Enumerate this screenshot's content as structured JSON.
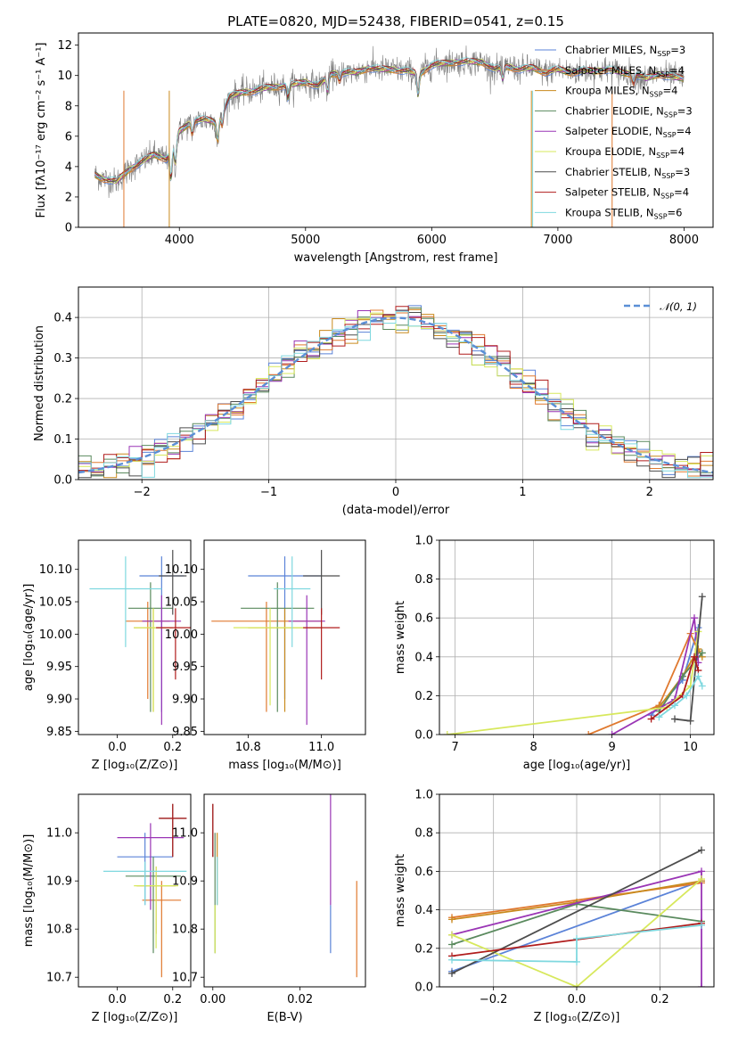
{
  "colors": [
    "#5b83d8",
    "#e0792f",
    "#c98a1d",
    "#5a8a5e",
    "#9a35b5",
    "#d7e85c",
    "#4d4d4d",
    "#b01c1c",
    "#7fd8df"
  ],
  "chart_data": [
    {
      "id": "spectrum",
      "type": "line",
      "title": "PLATE=0820, MJD=52438, FIBERID=0541, z=0.15",
      "xlabel": "wavelength [Angstrom, rest frame]",
      "ylabel": "Flux [fλ10⁻¹⁷ erg cm⁻² s⁻¹ A⁻¹]",
      "xlim": [
        3200,
        8230
      ],
      "ylim": [
        0,
        12.8
      ],
      "xticks": [
        4000,
        5000,
        6000,
        7000,
        8000
      ],
      "yticks": [
        0,
        2,
        4,
        6,
        8,
        10,
        12
      ],
      "grid": false,
      "legend_position": "upper right",
      "legend": [
        "Chabrier MILES, N_SSP=3",
        "Salpeter MILES, N_SSP=4",
        "Kroupa MILES, N_SSP=4",
        "Chabrier ELODIE, N_SSP=3",
        "Salpeter ELODIE, N_SSP=4",
        "Kroupa ELODIE, N_SSP=4",
        "Chabrier STELIB, N_SSP=3",
        "Salpeter STELIB, N_SSP=4",
        "Kroupa STELIB, N_SSP=6"
      ],
      "continuum": {
        "x": [
          3320,
          3400,
          3500,
          3600,
          3700,
          3800,
          3900,
          4000,
          4100,
          4200,
          4300,
          4400,
          4500,
          4600,
          4700,
          4800,
          4900,
          5000,
          5100,
          5200,
          5300,
          5400,
          5500,
          5600,
          5700,
          5800,
          5900,
          6000,
          6100,
          6200,
          6300,
          6400,
          6500,
          6600,
          6700,
          6800,
          6900,
          7000,
          7100,
          7200,
          7300,
          7400,
          7500,
          7600,
          7700,
          7800,
          7900,
          8000
        ],
        "y": [
          3.5,
          3.2,
          3.0,
          3.8,
          4.3,
          4.8,
          4.5,
          6.3,
          7.0,
          7.1,
          6.9,
          8.6,
          8.9,
          9.0,
          9.2,
          9.3,
          9.4,
          9.6,
          9.3,
          10.1,
          10.2,
          10.2,
          10.5,
          10.4,
          10.4,
          10.3,
          10.1,
          10.7,
          10.8,
          10.9,
          10.9,
          10.9,
          10.4,
          10.6,
          10.4,
          10.5,
          10.2,
          10.4,
          10.2,
          10.3,
          10.3,
          10.4,
          10.2,
          10.1,
          9.8,
          10.1,
          9.9,
          9.8
        ]
      }
    },
    {
      "id": "residuals",
      "type": "line",
      "xlabel": "(data-model)/error",
      "ylabel": "Normed distribution",
      "xlim": [
        -2.5,
        2.5
      ],
      "ylim": [
        0,
        0.475
      ],
      "xticks": [
        -2,
        -1,
        0,
        1,
        2
      ],
      "yticks": [
        0.0,
        0.1,
        0.2,
        0.3,
        0.4
      ],
      "grid": true,
      "legend_position": "upper right",
      "reference_curve_label": "𝒩(0, 1)",
      "bin_width": 0.1
    },
    {
      "id": "age-Z",
      "type": "scatter",
      "xlabel": "Z [log₁₀(Z/Z⊙)]",
      "ylabel": "age  [log₁₀(age/yr)]",
      "xlim": [
        -0.14,
        0.265
      ],
      "ylim": [
        9.845,
        10.145
      ],
      "xticks": [
        0.0,
        0.2
      ],
      "yticks": [
        9.85,
        9.9,
        9.95,
        10.0,
        10.05,
        10.1
      ],
      "points": [
        {
          "x": 0.16,
          "y": 10.09,
          "dx": 0.08,
          "dy_lo": 0.21,
          "dy_hi": 0.03
        },
        {
          "x": 0.11,
          "y": 10.02,
          "dx": 0.08,
          "dy_lo": 0.12,
          "dy_hi": 0.03
        },
        {
          "x": 0.13,
          "y": 10.01,
          "dx": 0.07,
          "dy_lo": 0.13,
          "dy_hi": 0.03
        },
        {
          "x": 0.12,
          "y": 10.04,
          "dx": 0.08,
          "dy_lo": 0.16,
          "dy_hi": 0.04
        },
        {
          "x": 0.16,
          "y": 10.02,
          "dx": 0.07,
          "dy_lo": 0.16,
          "dy_hi": 0.04
        },
        {
          "x": 0.13,
          "y": 10.01,
          "dx": 0.07,
          "dy_lo": 0.13,
          "dy_hi": 0.03
        },
        {
          "x": 0.2,
          "y": 10.09,
          "dx": 0.05,
          "dy_lo": 0.06,
          "dy_hi": 0.04
        },
        {
          "x": 0.21,
          "y": 10.01,
          "dx": 0.07,
          "dy_lo": 0.08,
          "dy_hi": 0.03
        },
        {
          "x": 0.03,
          "y": 10.07,
          "dx": 0.13,
          "dy_lo": 0.09,
          "dy_hi": 0.05
        }
      ]
    },
    {
      "id": "age-mass",
      "type": "scatter",
      "xlabel": "mass [log₁₀(M/M⊙)]",
      "xlim": [
        10.68,
        11.12
      ],
      "ylim": [
        9.845,
        10.145
      ],
      "xticks": [
        10.8,
        11.0
      ],
      "yticks": [
        9.85,
        9.9,
        9.95,
        10.0,
        10.05,
        10.1
      ],
      "points": [
        {
          "x": 10.9,
          "y": 10.09,
          "dx": 0.1,
          "dy_lo": 0.19,
          "dy_hi": 0.03
        },
        {
          "x": 10.85,
          "y": 10.02,
          "dx": 0.15,
          "dy_lo": 0.14,
          "dy_hi": 0.03
        },
        {
          "x": 10.9,
          "y": 10.01,
          "dx": 0.1,
          "dy_lo": 0.13,
          "dy_hi": 0.03
        },
        {
          "x": 10.88,
          "y": 10.04,
          "dx": 0.1,
          "dy_lo": 0.16,
          "dy_hi": 0.04
        },
        {
          "x": 10.96,
          "y": 10.02,
          "dx": 0.05,
          "dy_lo": 0.16,
          "dy_hi": 0.04
        },
        {
          "x": 10.86,
          "y": 10.01,
          "dx": 0.1,
          "dy_lo": 0.12,
          "dy_hi": 0.03
        },
        {
          "x": 11.0,
          "y": 10.09,
          "dx": 0.05,
          "dy_lo": 0.06,
          "dy_hi": 0.04
        },
        {
          "x": 11.0,
          "y": 10.01,
          "dx": 0.05,
          "dy_lo": 0.08,
          "dy_hi": 0.03
        },
        {
          "x": 10.92,
          "y": 10.07,
          "dx": 0.05,
          "dy_lo": 0.09,
          "dy_hi": 0.05
        }
      ]
    },
    {
      "id": "weight-age",
      "type": "line",
      "xlabel": "age  [log₁₀(age/yr)]",
      "ylabel": "mass weight",
      "xlim": [
        6.8,
        10.3
      ],
      "ylim": [
        0.0,
        1.0
      ],
      "xticks": [
        7,
        8,
        9,
        10
      ],
      "yticks": [
        0.0,
        0.2,
        0.4,
        0.6,
        0.8,
        1.0
      ],
      "grid": true,
      "series": [
        {
          "points": [
            [
              9.5,
              0.1
            ],
            [
              9.9,
              0.28
            ],
            [
              10.1,
              0.55
            ]
          ]
        },
        {
          "points": [
            [
              8.7,
              0.0
            ],
            [
              9.6,
              0.15
            ],
            [
              10.0,
              0.52
            ],
            [
              10.1,
              0.43
            ]
          ]
        },
        {
          "points": [
            [
              9.6,
              0.14
            ],
            [
              9.9,
              0.3
            ],
            [
              10.1,
              0.44
            ],
            [
              10.15,
              0.4
            ]
          ]
        },
        {
          "points": [
            [
              9.6,
              0.12
            ],
            [
              9.9,
              0.3
            ],
            [
              10.15,
              0.42
            ]
          ]
        },
        {
          "points": [
            [
              9.0,
              0.0
            ],
            [
              9.8,
              0.18
            ],
            [
              10.05,
              0.6
            ],
            [
              10.1,
              0.37
            ]
          ]
        },
        {
          "points": [
            [
              6.9,
              0.0
            ],
            [
              9.7,
              0.14
            ],
            [
              10.0,
              0.25
            ],
            [
              10.1,
              0.53
            ]
          ]
        },
        {
          "points": [
            [
              9.8,
              0.08
            ],
            [
              10.0,
              0.07
            ],
            [
              10.15,
              0.71
            ]
          ]
        },
        {
          "points": [
            [
              9.5,
              0.08
            ],
            [
              9.9,
              0.2
            ],
            [
              10.05,
              0.4
            ],
            [
              10.1,
              0.33
            ]
          ]
        },
        {
          "points": [
            [
              9.6,
              0.09
            ],
            [
              9.8,
              0.15
            ],
            [
              9.95,
              0.2
            ],
            [
              10.1,
              0.3
            ],
            [
              10.15,
              0.25
            ]
          ]
        }
      ]
    },
    {
      "id": "mass-Z",
      "type": "scatter",
      "xlabel": "Z [log₁₀(Z/Z⊙)]",
      "ylabel": "mass [log₁₀(M/M⊙)]",
      "xlim": [
        -0.14,
        0.265
      ],
      "ylim": [
        10.68,
        11.08
      ],
      "xticks": [
        0.0,
        0.2
      ],
      "yticks": [
        10.7,
        10.8,
        10.9,
        11.0
      ],
      "points": [
        {
          "x": 0.1,
          "y": 10.95,
          "dx": 0.1,
          "dy_lo": 0.1,
          "dy_hi": 0.05
        },
        {
          "x": 0.16,
          "y": 10.86,
          "dx": 0.07,
          "dy_lo": 0.16,
          "dy_hi": 0.04
        },
        {
          "x": 0.14,
          "y": 10.89,
          "dx": 0.07,
          "dy_lo": 0.1,
          "dy_hi": 0.04
        },
        {
          "x": 0.13,
          "y": 10.91,
          "dx": 0.1,
          "dy_lo": 0.16,
          "dy_hi": 0.04
        },
        {
          "x": 0.12,
          "y": 10.99,
          "dx": 0.12,
          "dy_lo": 0.15,
          "dy_hi": 0.03
        },
        {
          "x": 0.14,
          "y": 10.89,
          "dx": 0.08,
          "dy_lo": 0.13,
          "dy_hi": 0.04
        },
        {
          "x": 0.2,
          "y": 11.03,
          "dx": 0.05,
          "dy_lo": 0.08,
          "dy_hi": 0.03
        },
        {
          "x": 0.2,
          "y": 11.03,
          "dx": 0.05,
          "dy_lo": 0.08,
          "dy_hi": 0.03
        },
        {
          "x": 0.1,
          "y": 10.92,
          "dx": 0.15,
          "dy_lo": 0.07,
          "dy_hi": 0.02
        }
      ]
    },
    {
      "id": "mass-EBV",
      "type": "scatter",
      "xlabel": "E(B-V)",
      "xlim": [
        -0.002,
        0.035
      ],
      "ylim": [
        10.68,
        11.08
      ],
      "xticks": [
        0.0,
        0.02
      ],
      "yticks": [
        10.7,
        10.8,
        10.9,
        11.0
      ],
      "points": [
        {
          "x": 0.027,
          "y": 10.8,
          "dy_lo": 0.05,
          "dy_hi": 0.05
        },
        {
          "x": 0.033,
          "y": 10.8,
          "dy_lo": 0.1,
          "dy_hi": 0.1
        },
        {
          "x": 0.001,
          "y": 10.95,
          "dy_lo": 0.1,
          "dy_hi": 0.05
        },
        {
          "x": 0.0005,
          "y": 10.95,
          "dy_lo": 0.2,
          "dy_hi": 0.05
        },
        {
          "x": 0.027,
          "y": 10.95,
          "dy_lo": 0.1,
          "dy_hi": 0.18
        },
        {
          "x": 0.0005,
          "y": 10.8,
          "dy_lo": 0.05,
          "dy_hi": 0.05
        },
        {
          "x": 0.0,
          "y": 11.0,
          "dy_lo": 0.05,
          "dy_hi": 0.06
        },
        {
          "x": 0.0,
          "y": 11.0,
          "dy_lo": 0.05,
          "dy_hi": 0.06
        },
        {
          "x": 0.001,
          "y": 10.9,
          "dy_lo": 0.05,
          "dy_hi": 0.05
        }
      ]
    },
    {
      "id": "weight-Z",
      "type": "line",
      "xlabel": "Z [log₁₀(Z/Z⊙)]",
      "ylabel": "mass weight",
      "xlim": [
        -0.33,
        0.33
      ],
      "ylim": [
        0.0,
        1.0
      ],
      "xticks": [
        -0.2,
        0.0,
        0.2
      ],
      "yticks": [
        0.0,
        0.2,
        0.4,
        0.6,
        0.8,
        1.0
      ],
      "grid": true,
      "series": [
        {
          "points": [
            [
              -0.3,
              0.08
            ],
            [
              0.3,
              0.55
            ]
          ]
        },
        {
          "points": [
            [
              -0.3,
              0.36
            ],
            [
              0.3,
              0.54
            ]
          ]
        },
        {
          "points": [
            [
              -0.3,
              0.35
            ],
            [
              0.0,
              0.44
            ],
            [
              0.3,
              0.55
            ]
          ]
        },
        {
          "points": [
            [
              -0.3,
              0.22
            ],
            [
              0.0,
              0.43
            ],
            [
              0.3,
              0.34
            ]
          ]
        },
        {
          "points": [
            [
              -0.3,
              0.27
            ],
            [
              0.3,
              0.6
            ],
            [
              0.3,
              0.0
            ]
          ]
        },
        {
          "points": [
            [
              -0.3,
              0.27
            ],
            [
              0.0,
              0.0
            ],
            [
              0.3,
              0.56
            ]
          ]
        },
        {
          "points": [
            [
              -0.3,
              0.07
            ],
            [
              0.3,
              0.71
            ]
          ]
        },
        {
          "points": [
            [
              -0.3,
              0.16
            ],
            [
              0.3,
              0.33
            ]
          ]
        },
        {
          "points": [
            [
              -0.3,
              0.14
            ],
            [
              0.0,
              0.13
            ],
            [
              0.0,
              0.25
            ],
            [
              0.3,
              0.32
            ]
          ]
        }
      ]
    }
  ]
}
